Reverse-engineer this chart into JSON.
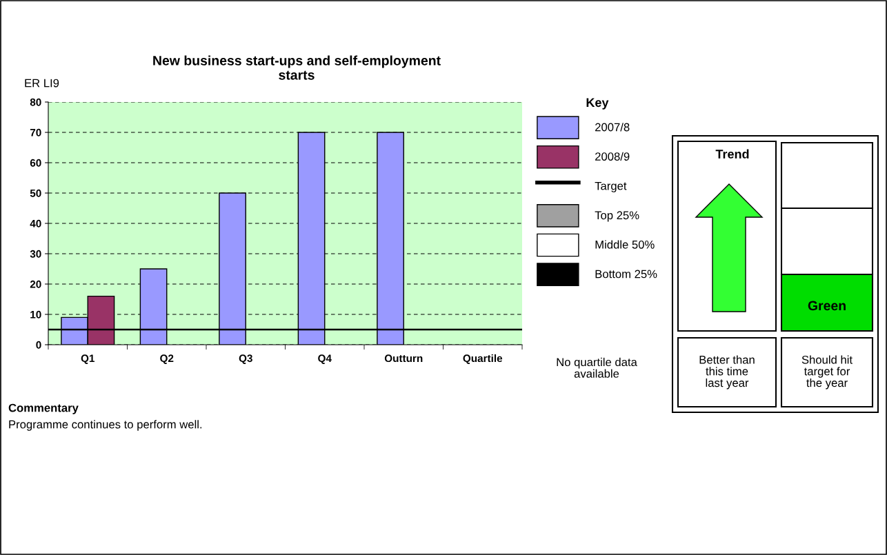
{
  "chart_data": {
    "type": "bar",
    "title": "New business start-ups and self-employment starts",
    "categories": [
      "Q1",
      "Q2",
      "Q3",
      "Q4",
      "Outturn",
      "Quartile"
    ],
    "series": [
      {
        "name": "2007/8",
        "color": "#9999ff",
        "values": [
          9,
          25,
          50,
          70,
          70,
          null
        ]
      },
      {
        "name": "2008/9",
        "color": "#993366",
        "values": [
          16,
          null,
          null,
          null,
          null,
          null
        ]
      },
      {
        "name": "Top 25%",
        "color": "#a0a0a0",
        "values": [
          null,
          null,
          null,
          null,
          null,
          null
        ]
      },
      {
        "name": "Middle 50%",
        "color": "#ffffff",
        "values": [
          null,
          null,
          null,
          null,
          null,
          null
        ]
      },
      {
        "name": "Bottom 25%",
        "color": "#000000",
        "values": [
          null,
          null,
          null,
          null,
          null,
          null
        ]
      }
    ],
    "ref_lines": [
      {
        "axis": "y",
        "value": 5,
        "label": "Target",
        "color": "#000000",
        "line_style": "solid"
      }
    ],
    "ylim": [
      0,
      80
    ],
    "yticks": [
      0,
      10,
      20,
      30,
      40,
      50,
      60,
      70,
      80
    ],
    "grid": "y",
    "legend": "right",
    "legend_title": "Key",
    "annotations": [
      "ER LI9",
      "No quartile data available",
      "Trend",
      "Green",
      "Better than this time last year",
      "Should hit target for the year",
      "Commentary",
      "Programme continues to perform well."
    ]
  }
}
